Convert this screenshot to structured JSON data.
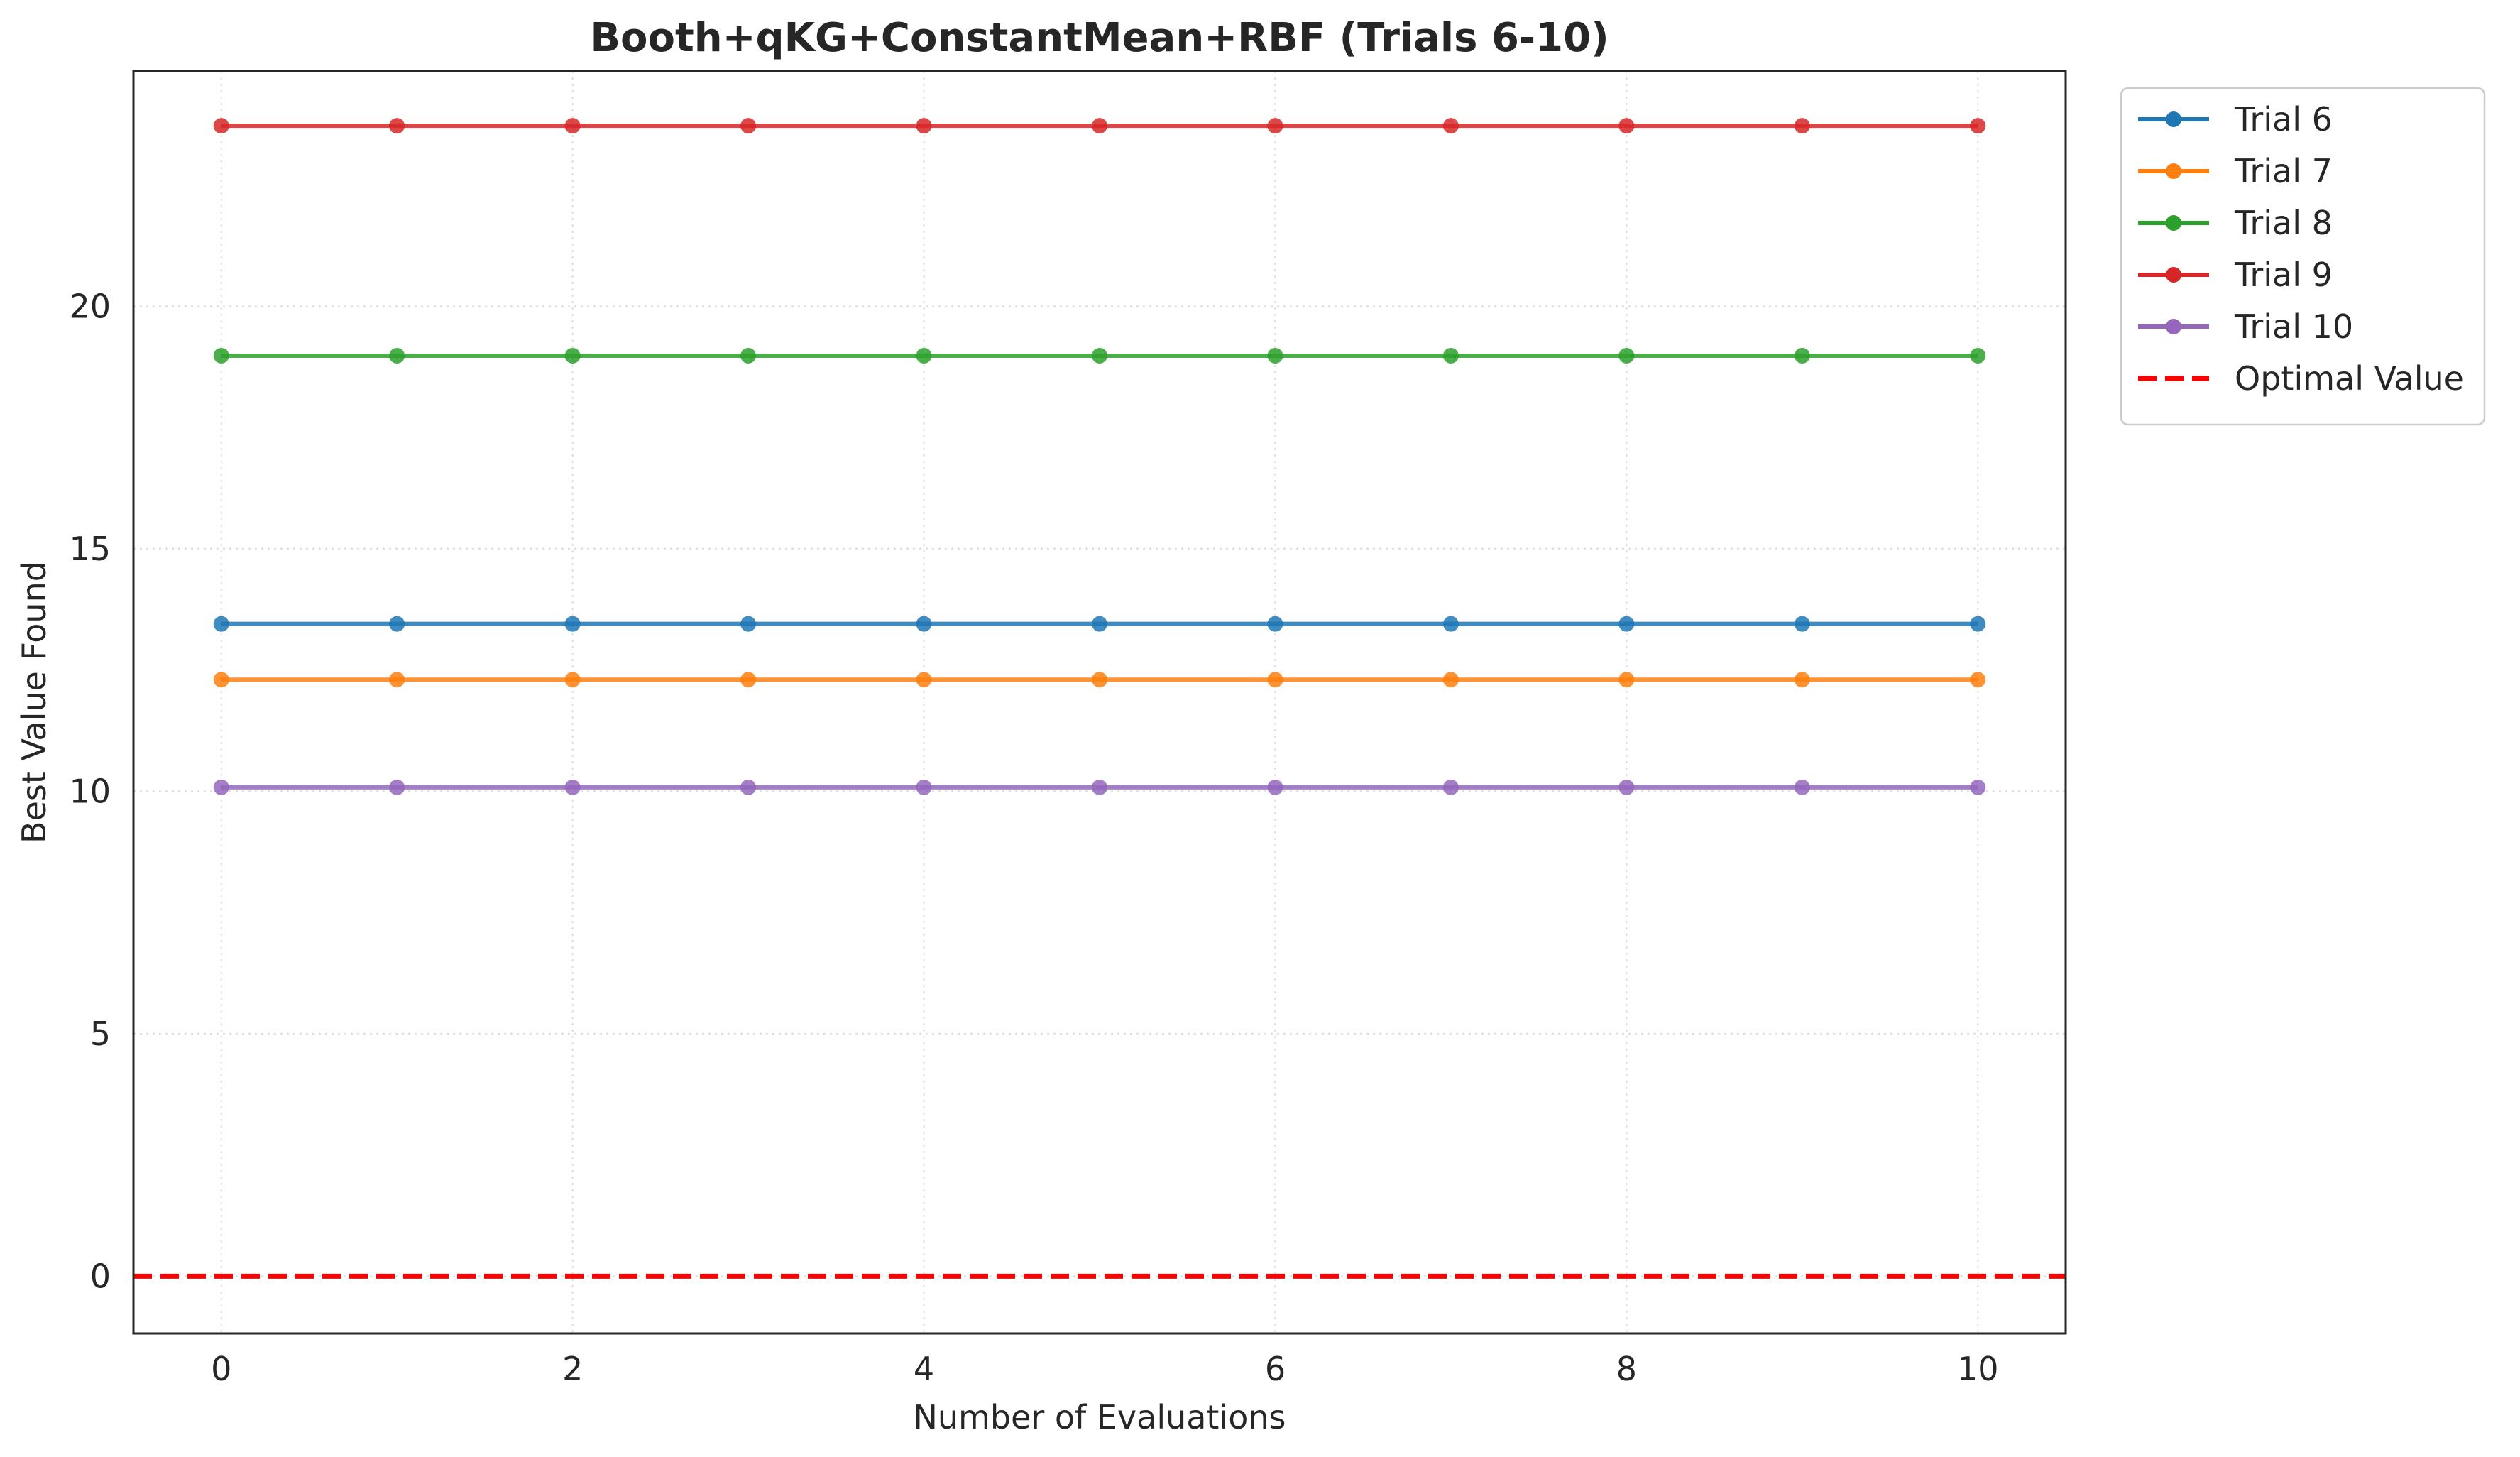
{
  "chart_data": {
    "type": "line",
    "title": "Booth+qKG+ConstantMean+RBF (Trials 6-10)",
    "xlabel": "Number of Evaluations",
    "ylabel": "Best Value Found",
    "x": [
      0,
      1,
      2,
      3,
      4,
      5,
      6,
      7,
      8,
      9,
      10
    ],
    "xlim": [
      -0.5,
      10.5
    ],
    "ylim": [
      -1.18,
      24.85
    ],
    "xticks": [
      0,
      2,
      4,
      6,
      8,
      10
    ],
    "yticks": [
      0,
      5,
      10,
      15,
      20
    ],
    "grid": true,
    "legend_position": "outside-top-right",
    "series": [
      {
        "name": "Trial 6",
        "color": "#1f77b4",
        "values": [
          13.45,
          13.45,
          13.45,
          13.45,
          13.45,
          13.45,
          13.45,
          13.45,
          13.45,
          13.45,
          13.45
        ]
      },
      {
        "name": "Trial 7",
        "color": "#ff7f0e",
        "values": [
          12.3,
          12.3,
          12.3,
          12.3,
          12.3,
          12.3,
          12.3,
          12.3,
          12.3,
          12.3,
          12.3
        ]
      },
      {
        "name": "Trial 8",
        "color": "#2ca02c",
        "values": [
          18.98,
          18.98,
          18.98,
          18.98,
          18.98,
          18.98,
          18.98,
          18.98,
          18.98,
          18.98,
          18.98
        ]
      },
      {
        "name": "Trial 9",
        "color": "#d62728",
        "values": [
          23.72,
          23.72,
          23.72,
          23.72,
          23.72,
          23.72,
          23.72,
          23.72,
          23.72,
          23.72,
          23.72
        ]
      },
      {
        "name": "Trial 10",
        "color": "#9467bd",
        "values": [
          10.08,
          10.08,
          10.08,
          10.08,
          10.08,
          10.08,
          10.08,
          10.08,
          10.08,
          10.08,
          10.08
        ]
      }
    ],
    "reference_line": {
      "name": "Optimal Value",
      "value": 0,
      "color": "#ff0000",
      "style": "dashed"
    }
  }
}
